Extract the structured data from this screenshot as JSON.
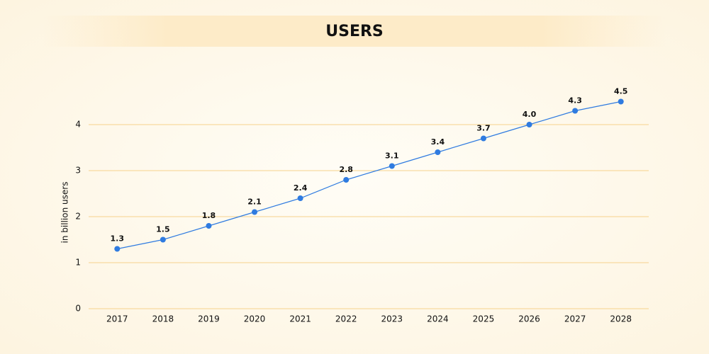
{
  "chart_data": {
    "type": "line",
    "title": "USERS",
    "y_label": "in billion users",
    "categories": [
      "2017",
      "2018",
      "2019",
      "2020",
      "2021",
      "2022",
      "2023",
      "2024",
      "2025",
      "2026",
      "2027",
      "2028"
    ],
    "values": [
      1.3,
      1.5,
      1.8,
      2.1,
      2.4,
      2.8,
      3.1,
      3.4,
      3.7,
      4.0,
      4.3,
      4.5
    ],
    "value_labels": [
      "1.3",
      "1.5",
      "1.8",
      "2.1",
      "2.4",
      "2.8",
      "3.1",
      "3.4",
      "3.7",
      "4.0",
      "4.3",
      "4.5"
    ],
    "color": "#2f7be0",
    "grid_color": "#f6d28c",
    "ylim": [
      0,
      5
    ],
    "yticks": [
      0,
      1,
      2,
      3,
      4
    ],
    "grid": true
  }
}
